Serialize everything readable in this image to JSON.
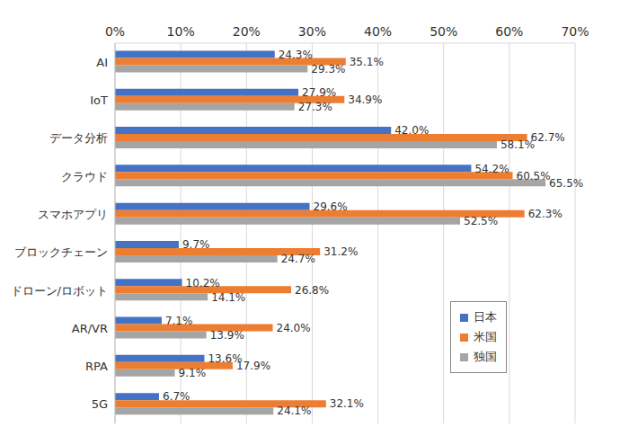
{
  "chart_data": {
    "type": "bar",
    "orientation": "horizontal",
    "categories": [
      "AI",
      "IoT",
      "データ分析",
      "クラウド",
      "スマホアプリ",
      "ブロックチェーン",
      "ドローン/ロボット",
      "AR/VR",
      "RPA",
      "5G"
    ],
    "series": [
      {
        "name": "日本",
        "color": "#4472c4",
        "values": [
          24.3,
          27.9,
          42.0,
          54.2,
          29.6,
          9.7,
          10.2,
          7.1,
          13.6,
          6.7
        ],
        "value_labels": [
          "24.3%",
          "27.9%",
          "42.0%",
          "54.2%",
          "29.6%",
          "9.7%",
          "10.2%",
          "7.1%",
          "13.6%",
          "6.7%"
        ]
      },
      {
        "name": "米国",
        "color": "#ed7d31",
        "values": [
          35.1,
          34.9,
          62.7,
          60.5,
          62.3,
          31.2,
          26.8,
          24.0,
          17.9,
          32.1
        ],
        "value_labels": [
          "35.1%",
          "34.9%",
          "62.7%",
          "60.5%",
          "62.3%",
          "31.2%",
          "26.8%",
          "24.0%",
          "17.9%",
          "32.1%"
        ]
      },
      {
        "name": "独国",
        "color": "#a5a5a5",
        "values": [
          29.3,
          27.3,
          58.1,
          65.5,
          52.5,
          24.7,
          14.1,
          13.9,
          9.1,
          24.1
        ],
        "value_labels": [
          "29.3%",
          "27.3%",
          "58.1%",
          "65.5%",
          "52.5%",
          "24.7%",
          "14.1%",
          "13.9%",
          "9.1%",
          "24.1%"
        ]
      }
    ],
    "xlim": [
      0,
      70
    ],
    "xticks": [
      {
        "value": 0,
        "label": "0%"
      },
      {
        "value": 10,
        "label": "10%"
      },
      {
        "value": 20,
        "label": "20%"
      },
      {
        "value": 30,
        "label": "30%"
      },
      {
        "value": 40,
        "label": "40%"
      },
      {
        "value": 50,
        "label": "50%"
      },
      {
        "value": 60,
        "label": "60%"
      },
      {
        "value": 70,
        "label": "70%"
      }
    ],
    "grid": true,
    "legend": "lower right",
    "data_labels": true
  }
}
